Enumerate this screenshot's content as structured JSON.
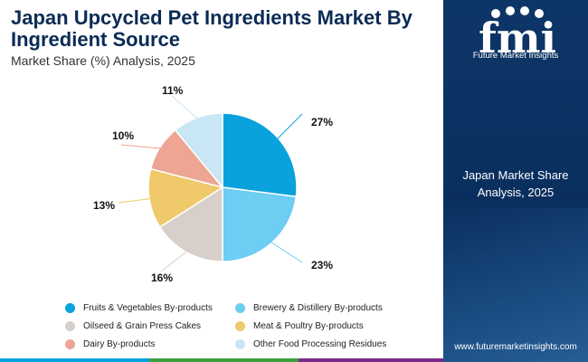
{
  "header": {
    "title": "Japan Upcycled Pet Ingredients Market By Ingredient Source",
    "subtitle": "Market Share (%) Analysis, 2025"
  },
  "chart_data": {
    "type": "pie",
    "title": "Japan Upcycled Pet Ingredients Market By Ingredient Source",
    "subtitle": "Market Share (%) Analysis, 2025",
    "categories": [
      "Fruits & Vegetables By-products",
      "Brewery & Distillery By-products",
      "Oilseed & Grain Press Cakes",
      "Meat & Poultry By-products",
      "Dairy By-products",
      "Other Food Processing Residues"
    ],
    "values": [
      27,
      23,
      16,
      13,
      10,
      11
    ],
    "labels": [
      "27%",
      "23%",
      "16%",
      "13%",
      "10%",
      "11%"
    ],
    "colors": [
      "#0aa2dc",
      "#6dcdf3",
      "#d8ceca",
      "#efc96a",
      "#eea593",
      "#c9e6f4"
    ]
  },
  "sidebar": {
    "brand": "fmi",
    "tagline": "Future Market Insights",
    "panel_text": "Japan Market Share Analysis, 2025",
    "website": "www.futuremarketinsights.com"
  },
  "footer_colors": [
    "#0aa2dc",
    "#3b9f3d",
    "#1a3b8a",
    "#7a2a8a"
  ]
}
